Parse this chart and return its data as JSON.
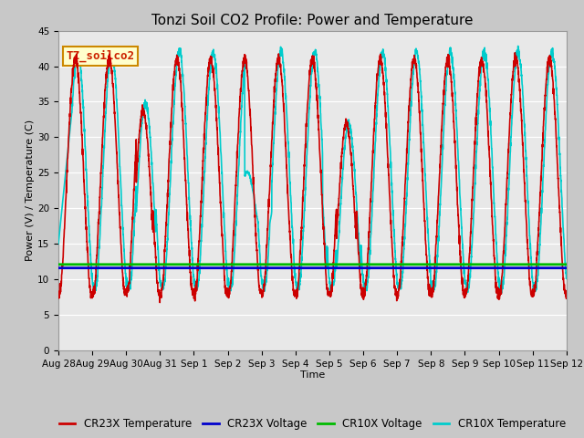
{
  "title": "Tonzi Soil CO2 Profile: Power and Temperature",
  "xlabel": "Time",
  "ylabel": "Power (V) / Temperature (C)",
  "ylim": [
    0,
    45
  ],
  "yticks": [
    0,
    5,
    10,
    15,
    20,
    25,
    30,
    35,
    40,
    45
  ],
  "legend_label": "TZ_soilco2",
  "series": {
    "CR23X_Temperature": {
      "color": "#cc0000",
      "lw": 1.2
    },
    "CR23X_Voltage": {
      "color": "#0000cc",
      "lw": 2.0
    },
    "CR10X_Voltage": {
      "color": "#00bb00",
      "lw": 2.0
    },
    "CR10X_Temperature": {
      "color": "#00cccc",
      "lw": 1.2
    }
  },
  "cr23x_voltage_value": 11.6,
  "cr10x_voltage_value": 12.1,
  "background_color": "#c8c8c8",
  "plot_bg_color": "#e8e8e8",
  "title_fontsize": 11,
  "axis_label_fontsize": 8,
  "tick_fontsize": 7.5,
  "legend_fontsize": 8.5
}
